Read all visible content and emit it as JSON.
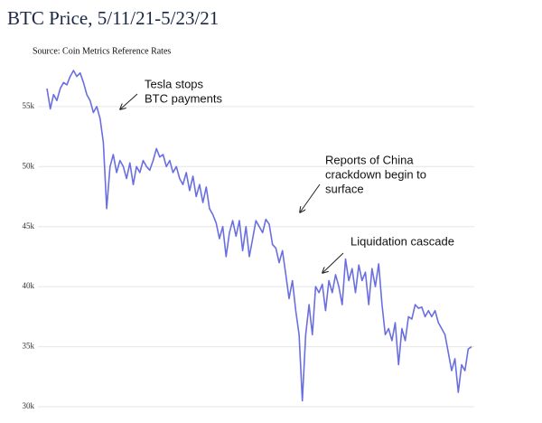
{
  "chart_data": {
    "type": "line",
    "title": "BTC Price, 5/11/21-5/23/21",
    "subtitle": "Source: Coin Metrics Reference Rates",
    "annotations": [
      [
        "Tesla stops",
        "BTC payments"
      ],
      [
        "Reports of China",
        "crackdown begin to",
        "surface"
      ],
      [
        "Liquidation cascade"
      ]
    ],
    "ylim": [
      30000,
      58000
    ],
    "yticks": [
      {
        "value": 30000,
        "label": "30k"
      },
      {
        "value": 35000,
        "label": "35k"
      },
      {
        "value": 40000,
        "label": "40k"
      },
      {
        "value": 45000,
        "label": "45k"
      },
      {
        "value": 50000,
        "label": "50k"
      },
      {
        "value": 55000,
        "label": "55k"
      }
    ],
    "grid": true,
    "categories": [
      null,
      null,
      null,
      null,
      null,
      null,
      null,
      null,
      null,
      null,
      null,
      null,
      null,
      null,
      null,
      null,
      null,
      null,
      null,
      null,
      null,
      null,
      null,
      null,
      null,
      null,
      null,
      null,
      null,
      null,
      null,
      null,
      null,
      null,
      null,
      null,
      null,
      null,
      null,
      null,
      null,
      null,
      null,
      null,
      null,
      null,
      null,
      null,
      null,
      null,
      null,
      null,
      null,
      null,
      null,
      null,
      null,
      null,
      null,
      null,
      null,
      null,
      null,
      null,
      null,
      null,
      null,
      null,
      null,
      null,
      null,
      null,
      null,
      null,
      null,
      null,
      null,
      null,
      null,
      null,
      null,
      null,
      null,
      null,
      null,
      null,
      null,
      null,
      null,
      null,
      null,
      null,
      null,
      null,
      null,
      null,
      null,
      null,
      null,
      null,
      null,
      null,
      null,
      null,
      null,
      null,
      null,
      null,
      null,
      null,
      null,
      null,
      null,
      null,
      null,
      null,
      null,
      null,
      null,
      null,
      null,
      null,
      null,
      null,
      null,
      null,
      null,
      null,
      null
    ],
    "series": [
      {
        "color": "#6a6fe0",
        "values": [
          56500,
          54800,
          56000,
          55500,
          56500,
          57000,
          56800,
          57500,
          58000,
          57500,
          57800,
          57000,
          56000,
          55500,
          54500,
          55000,
          54000,
          52000,
          46500,
          50000,
          51000,
          49500,
          50500,
          50000,
          49000,
          50300,
          48500,
          50000,
          49500,
          50500,
          50000,
          49700,
          50500,
          51500,
          50800,
          51000,
          50000,
          50500,
          49500,
          50000,
          49000,
          48500,
          49500,
          48000,
          49200,
          47500,
          48500,
          47000,
          48300,
          46500,
          46000,
          45300,
          44000,
          45000,
          42500,
          44500,
          45500,
          44200,
          45500,
          43000,
          45000,
          42500,
          44000,
          45500,
          45000,
          44500,
          45600,
          45200,
          43500,
          43200,
          42000,
          43000,
          41000,
          39000,
          40500,
          38000,
          36000,
          30500,
          36000,
          38500,
          36000,
          40000,
          39500,
          40200,
          38000,
          40500,
          39500,
          41000,
          40000,
          38500,
          42300,
          40500,
          41500,
          39500,
          41800,
          40500,
          41200,
          38500,
          41500,
          40000,
          41900,
          38500,
          36000,
          36500,
          35500,
          37000,
          33500,
          36500,
          35500,
          37500,
          37300,
          38500,
          38200,
          38300,
          37500,
          38000,
          37500,
          38000,
          37000,
          36500,
          36000,
          34500,
          33000,
          34000,
          31200,
          33500,
          33000,
          34800,
          35000
        ]
      }
    ]
  }
}
